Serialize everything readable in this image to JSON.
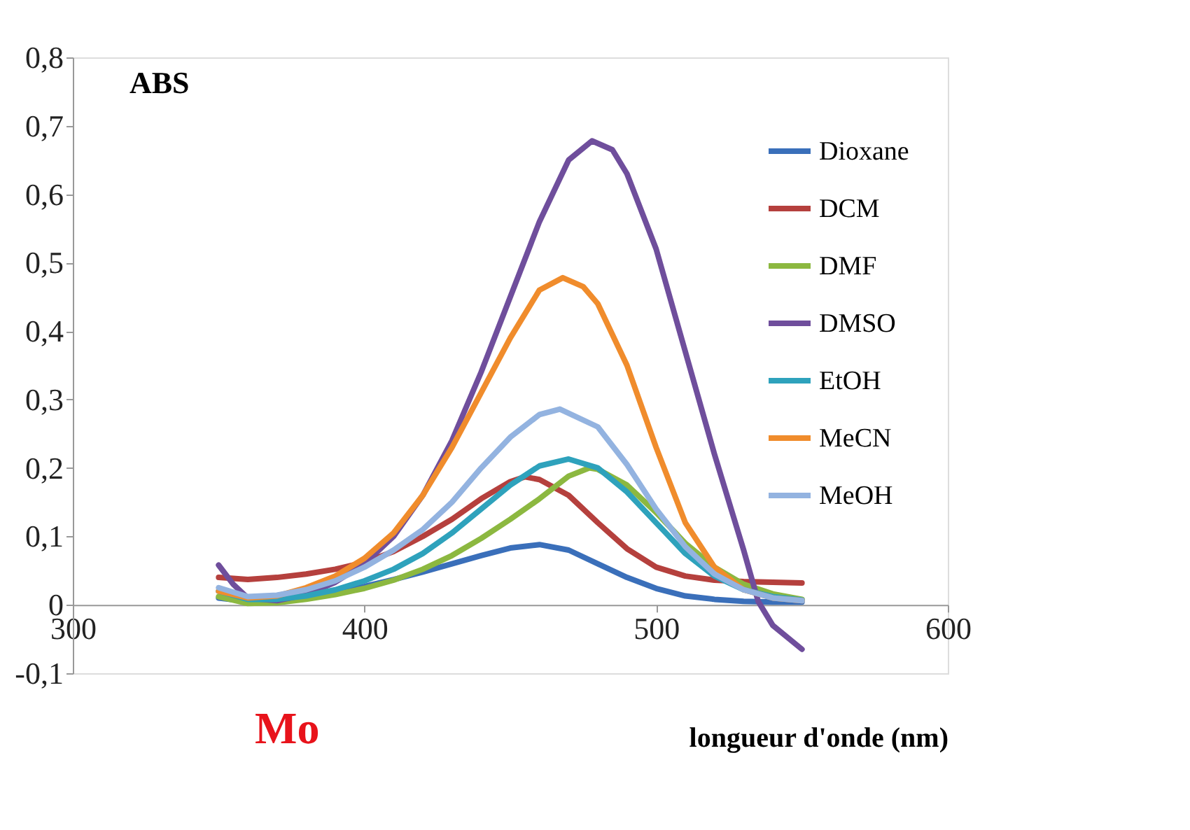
{
  "chart_data": {
    "type": "line",
    "ylabel": "ABS",
    "xlabel": "longueur d'onde (nm)",
    "annotations": [
      "Mo"
    ],
    "xlim": [
      300,
      600
    ],
    "xticks": [
      300,
      400,
      500,
      600
    ],
    "ylim": [
      -0.1,
      0.8
    ],
    "yticks": [
      {
        "value": -0.1,
        "label": "-0,1"
      },
      {
        "value": 0,
        "label": "0"
      },
      {
        "value": 0.1,
        "label": "0,1"
      },
      {
        "value": 0.2,
        "label": "0,2"
      },
      {
        "value": 0.3,
        "label": "0,3"
      },
      {
        "value": 0.4,
        "label": "0,4"
      },
      {
        "value": 0.5,
        "label": "0,5"
      },
      {
        "value": 0.6,
        "label": "0,6"
      },
      {
        "value": 0.7,
        "label": "0,7"
      },
      {
        "value": 0.8,
        "label": "0,8"
      }
    ],
    "grid": false,
    "legend": "top right",
    "marker": "none",
    "line_style": "solid",
    "series": [
      {
        "name": "Dioxane",
        "color": "#3a6fba",
        "x": [
          350,
          360,
          370,
          380,
          390,
          400,
          410,
          420,
          430,
          440,
          450,
          460,
          470,
          480,
          490,
          500,
          510,
          520,
          530,
          540,
          550
        ],
        "values": [
          0.01,
          0.005,
          0.008,
          0.012,
          0.018,
          0.027,
          0.037,
          0.048,
          0.06,
          0.072,
          0.083,
          0.088,
          0.08,
          0.06,
          0.04,
          0.024,
          0.013,
          0.008,
          0.005,
          0.004,
          0.004
        ]
      },
      {
        "name": "DCM",
        "color": "#b5403d",
        "x": [
          350,
          360,
          370,
          380,
          390,
          400,
          410,
          420,
          430,
          440,
          450,
          455,
          460,
          470,
          480,
          490,
          500,
          510,
          520,
          530,
          540,
          550
        ],
        "values": [
          0.04,
          0.037,
          0.04,
          0.045,
          0.052,
          0.062,
          0.078,
          0.1,
          0.125,
          0.155,
          0.18,
          0.187,
          0.183,
          0.16,
          0.12,
          0.082,
          0.055,
          0.042,
          0.036,
          0.034,
          0.033,
          0.032
        ]
      },
      {
        "name": "DMF",
        "color": "#8cb840",
        "x": [
          350,
          360,
          370,
          380,
          390,
          400,
          410,
          420,
          430,
          440,
          450,
          460,
          470,
          477,
          480,
          490,
          500,
          510,
          520,
          530,
          540,
          550
        ],
        "values": [
          0.012,
          0.002,
          0.003,
          0.008,
          0.015,
          0.024,
          0.036,
          0.052,
          0.072,
          0.097,
          0.125,
          0.155,
          0.188,
          0.2,
          0.198,
          0.175,
          0.135,
          0.09,
          0.055,
          0.03,
          0.016,
          0.008
        ]
      },
      {
        "name": "DMSO",
        "color": "#6f4e9c",
        "x": [
          350,
          355,
          360,
          370,
          380,
          390,
          400,
          410,
          420,
          430,
          440,
          450,
          460,
          470,
          478,
          485,
          490,
          500,
          510,
          520,
          530,
          535,
          540,
          550
        ],
        "values": [
          0.058,
          0.03,
          0.01,
          0.006,
          0.015,
          0.033,
          0.06,
          0.1,
          0.16,
          0.24,
          0.34,
          0.45,
          0.56,
          0.65,
          0.678,
          0.665,
          0.63,
          0.52,
          0.37,
          0.22,
          0.08,
          0.005,
          -0.03,
          -0.065
        ]
      },
      {
        "name": "EtOH",
        "color": "#2ea2bc",
        "x": [
          350,
          360,
          370,
          380,
          390,
          400,
          410,
          420,
          430,
          440,
          450,
          460,
          470,
          480,
          490,
          500,
          510,
          520,
          530,
          540,
          550
        ],
        "values": [
          0.02,
          0.008,
          0.008,
          0.013,
          0.022,
          0.035,
          0.052,
          0.075,
          0.105,
          0.14,
          0.175,
          0.203,
          0.213,
          0.2,
          0.165,
          0.12,
          0.075,
          0.042,
          0.022,
          0.012,
          0.007
        ]
      },
      {
        "name": "MeCN",
        "color": "#f08c2c",
        "x": [
          350,
          360,
          370,
          380,
          390,
          400,
          410,
          420,
          430,
          440,
          450,
          460,
          468,
          475,
          480,
          490,
          500,
          510,
          520,
          530,
          540,
          550
        ],
        "values": [
          0.02,
          0.01,
          0.013,
          0.025,
          0.042,
          0.068,
          0.105,
          0.16,
          0.23,
          0.31,
          0.39,
          0.46,
          0.478,
          0.465,
          0.44,
          0.35,
          0.23,
          0.12,
          0.055,
          0.022,
          0.01,
          0.006
        ]
      },
      {
        "name": "MeOH",
        "color": "#93b3e0",
        "x": [
          350,
          360,
          370,
          380,
          390,
          400,
          410,
          420,
          430,
          440,
          450,
          460,
          467,
          480,
          490,
          500,
          510,
          520,
          530,
          540,
          550
        ],
        "values": [
          0.025,
          0.012,
          0.014,
          0.022,
          0.035,
          0.055,
          0.08,
          0.11,
          0.15,
          0.2,
          0.245,
          0.278,
          0.286,
          0.26,
          0.205,
          0.14,
          0.085,
          0.045,
          0.022,
          0.01,
          0.006
        ]
      }
    ]
  }
}
